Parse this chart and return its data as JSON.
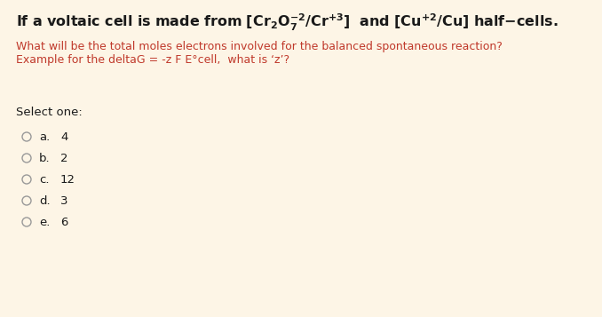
{
  "bg_color": "#fdf5e6",
  "title_color": "#1a1a1a",
  "subtitle_color": "#c0392b",
  "select_color": "#1a1a1a",
  "option_color": "#1a1a1a",
  "circle_color": "#999999",
  "subtitle_line1": "What will be the total moles electrons involved for the balanced spontaneous reaction?",
  "subtitle_line2": "Example for the deltaG = -z F E°cell,  what is ‘z’?",
  "select_label": "Select one:",
  "options": [
    {
      "letter": "a.",
      "value": "4"
    },
    {
      "letter": "b.",
      "value": "2"
    },
    {
      "letter": "c.",
      "value": "12"
    },
    {
      "letter": "d.",
      "value": "3"
    },
    {
      "letter": "e.",
      "value": "6"
    }
  ],
  "title_fontsize": 11.5,
  "subtitle_fontsize": 9.0,
  "option_fontsize": 9.5,
  "select_fontsize": 9.5
}
